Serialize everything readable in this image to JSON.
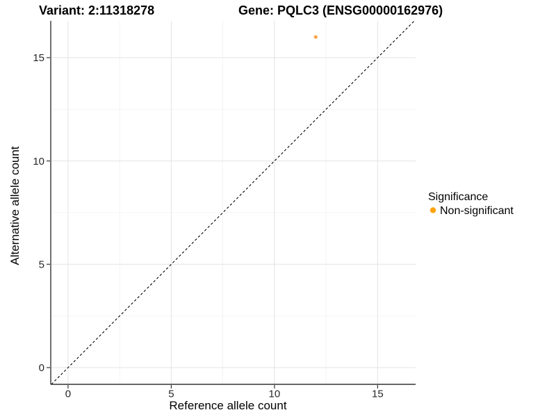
{
  "chart_data": {
    "type": "scatter",
    "titles": {
      "variant": "Variant: 2:11318278",
      "gene": "Gene: PQLC3 (ENSG00000162976)"
    },
    "xlabel": "Reference allele count",
    "ylabel": "Alternative allele count",
    "xlim": [
      -0.84,
      16.84
    ],
    "ylim": [
      -0.81,
      16.78
    ],
    "xticks": [
      0,
      5,
      10,
      15
    ],
    "yticks": [
      0,
      5,
      10,
      15
    ],
    "minor_xticks": [
      2.5,
      7.5,
      12.5
    ],
    "minor_yticks": [
      2.5,
      7.5,
      12.5
    ],
    "grid": "major and minor gridlines on white panel",
    "points": [
      {
        "x": 12,
        "y": 16,
        "significance": "Non-significant",
        "color": "#F9A242"
      }
    ],
    "identity_line": {
      "slope": 1,
      "intercept": 0,
      "style": "dashed",
      "color": "#000000"
    },
    "legend": {
      "title": "Significance",
      "position": "right",
      "entries": [
        {
          "label": "Non-significant",
          "color": "#FFA40D"
        }
      ]
    }
  }
}
